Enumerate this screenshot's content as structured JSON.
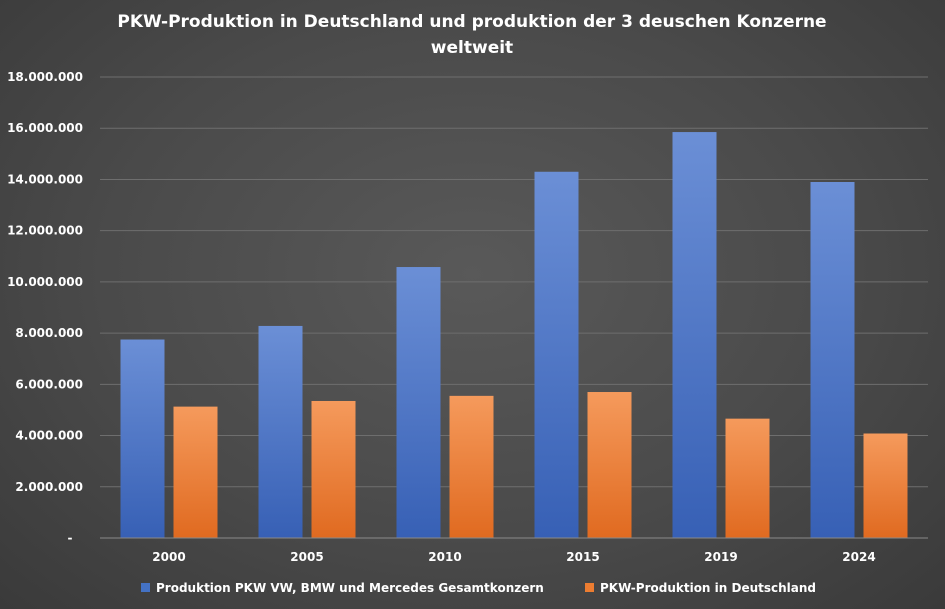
{
  "chart_data": {
    "type": "bar",
    "title_lines": [
      "PKW-Produktion in Deutschland und produktion der 3 deuschen Konzerne",
      "weltweit"
    ],
    "categories": [
      "2000",
      "2005",
      "2010",
      "2015",
      "2019",
      "2024"
    ],
    "series": [
      {
        "name": "Produktion PKW VW, BMW und Mercedes Gesamtkonzern",
        "color": "#4472C4",
        "values": [
          7750000,
          8280000,
          10580000,
          14300000,
          15850000,
          13900000
        ]
      },
      {
        "name": "PKW-Produktion in Deutschland",
        "color": "#ED7D31",
        "values": [
          5130000,
          5350000,
          5550000,
          5700000,
          4660000,
          4080000
        ]
      }
    ],
    "ylim": [
      0,
      18000000
    ],
    "yticks": [
      0,
      2000000,
      4000000,
      6000000,
      8000000,
      10000000,
      12000000,
      14000000,
      16000000,
      18000000
    ],
    "ytick_labels": [
      "-",
      "2.000.000",
      "4.000.000",
      "6.000.000",
      "8.000.000",
      "10.000.000",
      "12.000.000",
      "14.000.000",
      "16.000.000",
      "18.000.000"
    ],
    "grid": true,
    "legend_position": "bottom"
  }
}
